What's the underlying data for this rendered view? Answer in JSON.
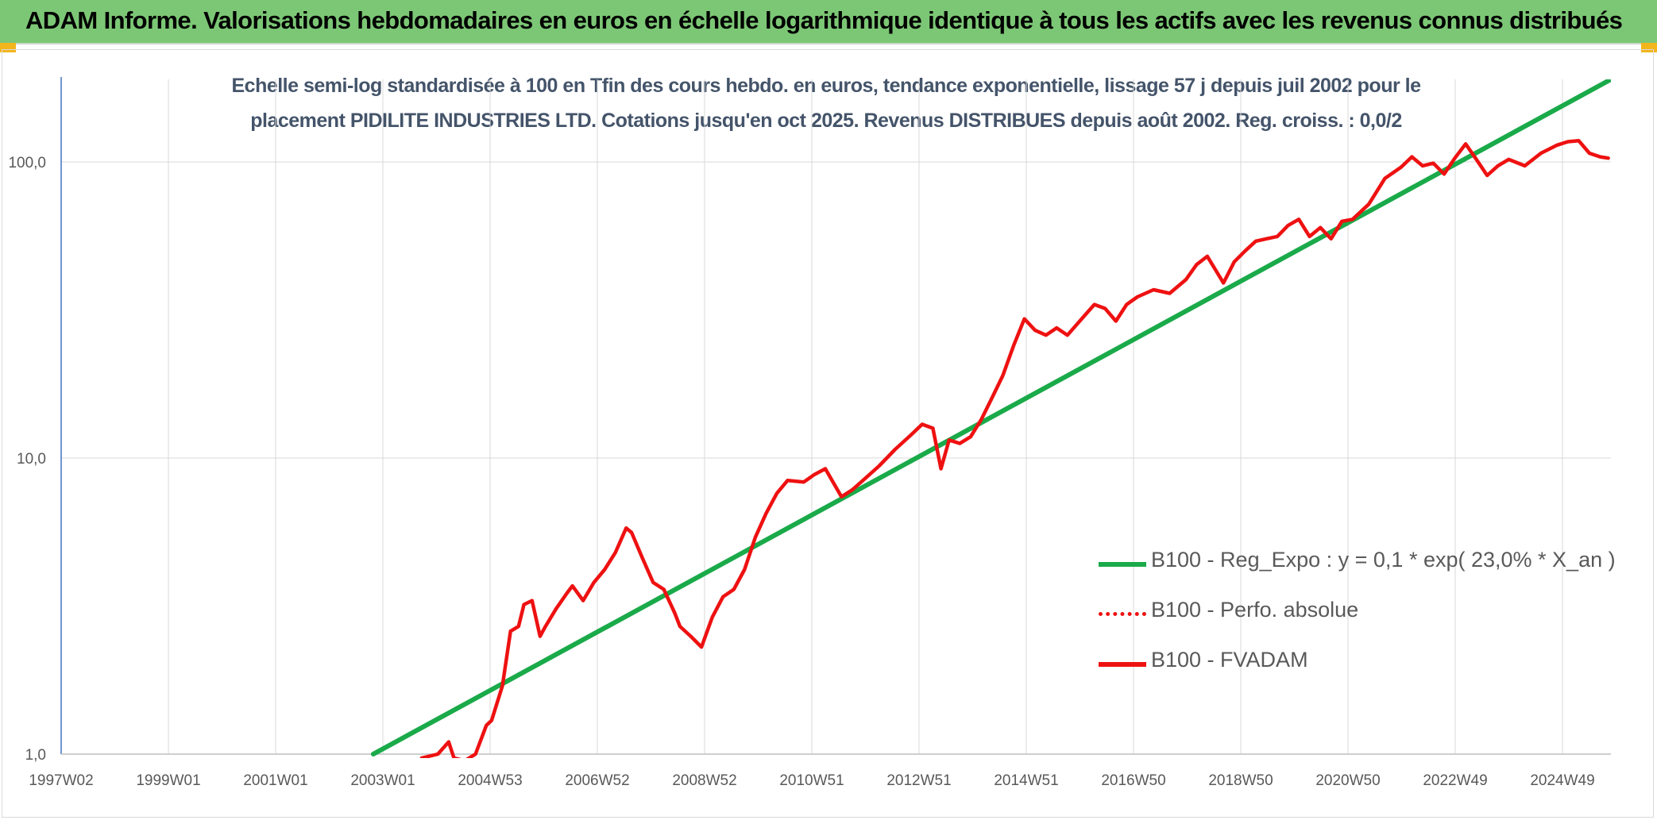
{
  "header": {
    "title": "ADAM Informe. Valorisations hebdomadaires en euros en échelle logarithmique identique à tous les actifs avec les revenus connus distribués"
  },
  "colors": {
    "header_bg": "#7cc775",
    "corner_accent": "#f2b51c",
    "title_text": "#44546a",
    "trend_green": "#1aaa4a",
    "fvadam_red": "#ee1111"
  },
  "chart_data": {
    "type": "line",
    "title_line1": "Echelle semi-log standardisée à 100 en Tfin des cours hebdo. en euros, tendance exponentielle, lissage 57 j depuis juil 2002 pour le",
    "title_line2": "placement PIDILITE INDUSTRIES LTD. Cotations jusqu'en oct 2025. Revenus DISTRIBUES depuis août 2002. Reg. croiss. : 0,0/2",
    "y_scale": "log",
    "ylim": [
      1,
      190
    ],
    "y_ticks": [
      1,
      10,
      100
    ],
    "y_tick_labels": [
      "1,0",
      "10,0",
      "100,0"
    ],
    "xlim": [
      1997.0,
      2025.8
    ],
    "x_tick_labels": [
      "1997W02",
      "1999W01",
      "2001W01",
      "2003W01",
      "2004W53",
      "2006W52",
      "2008W52",
      "2010W51",
      "2012W51",
      "2014W51",
      "2016W50",
      "2018W50",
      "2020W50",
      "2022W49",
      "2024W49"
    ],
    "grid": true,
    "legend_position": "lower-right",
    "series": [
      {
        "name": "B100 - Reg_Expo : y = 0,1 * exp( 23,0% *  X_an )",
        "style": "solid-green",
        "x": [
          2002.8,
          2025.8
        ],
        "y": [
          1.0,
          190.0
        ]
      },
      {
        "name": "B100 - Perfo. absolue",
        "style": "dotted-red",
        "x": [],
        "y": []
      },
      {
        "name": "B100 - FVADAM",
        "style": "solid-red",
        "x": [
          2003.7,
          2004.0,
          2004.2,
          2004.3,
          2004.5,
          2004.7,
          2004.9,
          2005.0,
          2005.2,
          2005.35,
          2005.5,
          2005.6,
          2005.75,
          2005.9,
          2006.0,
          2006.2,
          2006.4,
          2006.5,
          2006.7,
          2006.9,
          2007.1,
          2007.3,
          2007.5,
          2007.6,
          2007.8,
          2008.0,
          2008.2,
          2008.4,
          2008.5,
          2008.7,
          2008.9,
          2009.1,
          2009.3,
          2009.5,
          2009.7,
          2009.9,
          2010.1,
          2010.3,
          2010.5,
          2010.8,
          2011.0,
          2011.2,
          2011.5,
          2011.7,
          2011.9,
          2012.2,
          2012.5,
          2012.8,
          2013.0,
          2013.2,
          2013.35,
          2013.5,
          2013.7,
          2013.9,
          2014.1,
          2014.3,
          2014.5,
          2014.7,
          2014.9,
          2015.1,
          2015.3,
          2015.5,
          2015.7,
          2016.0,
          2016.2,
          2016.4,
          2016.6,
          2016.8,
          2017.0,
          2017.3,
          2017.6,
          2017.9,
          2018.1,
          2018.3,
          2018.6,
          2018.8,
          2019.0,
          2019.2,
          2019.4,
          2019.6,
          2019.8,
          2020.0,
          2020.2,
          2020.4,
          2020.6,
          2020.8,
          2021.0,
          2021.3,
          2021.6,
          2021.9,
          2022.1,
          2022.3,
          2022.5,
          2022.7,
          2022.9,
          2023.1,
          2023.3,
          2023.5,
          2023.7,
          2023.9,
          2024.2,
          2024.5,
          2024.8,
          2025.0,
          2025.2,
          2025.4,
          2025.6,
          2025.75
        ],
        "y": [
          0.97,
          1.0,
          1.1,
          0.97,
          0.95,
          1.0,
          1.25,
          1.3,
          1.7,
          2.6,
          2.7,
          3.2,
          3.3,
          2.5,
          2.7,
          3.1,
          3.5,
          3.7,
          3.3,
          3.8,
          4.2,
          4.8,
          5.8,
          5.6,
          4.6,
          3.8,
          3.6,
          3.0,
          2.7,
          2.5,
          2.3,
          2.9,
          3.4,
          3.6,
          4.2,
          5.4,
          6.5,
          7.6,
          8.4,
          8.3,
          8.8,
          9.2,
          7.4,
          7.8,
          8.4,
          9.4,
          10.7,
          12.0,
          13.0,
          12.6,
          9.2,
          11.5,
          11.2,
          11.8,
          13.5,
          16.0,
          19.0,
          24.0,
          29.5,
          27.0,
          26.0,
          27.5,
          26.0,
          30.0,
          33.0,
          32.0,
          29.0,
          33.0,
          35.0,
          37.0,
          36.0,
          40.0,
          45.0,
          48.0,
          39.0,
          46.0,
          50.0,
          54.0,
          55.0,
          56.0,
          61.0,
          64.0,
          56.0,
          60.0,
          55.0,
          63.0,
          64.0,
          72.0,
          88.0,
          96.0,
          104.0,
          97.0,
          99.0,
          91.0,
          103.0,
          115.0,
          102.0,
          90.0,
          97.0,
          102.0,
          97.0,
          107.0,
          114.0,
          117.0,
          118.0,
          107.0,
          104.0,
          103.0
        ]
      }
    ]
  }
}
